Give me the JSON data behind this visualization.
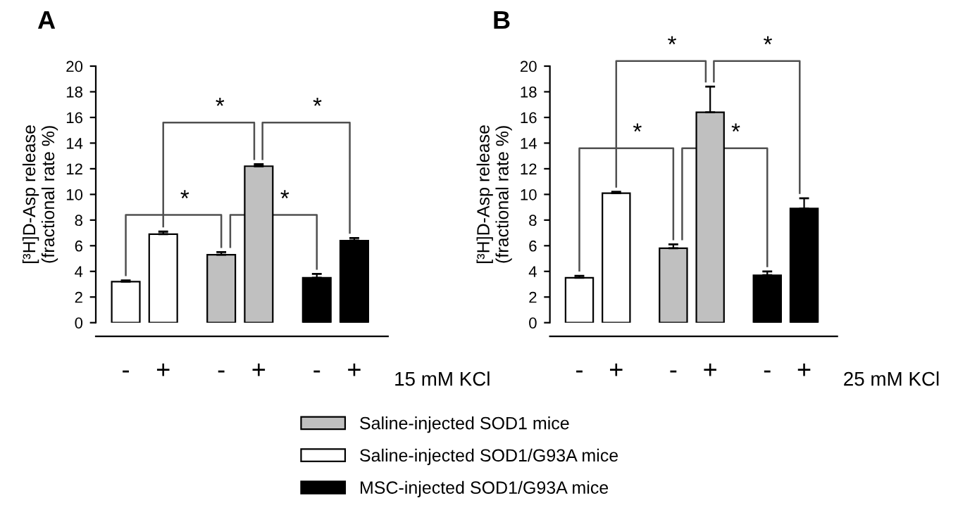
{
  "chart_data": [
    {
      "type": "bar",
      "title": "A",
      "ylabel": "[³H]D-Asp release\n(fractional rate %)",
      "xlabel": "15 mM KCl",
      "categories": [
        "-",
        "+",
        "-",
        "+",
        "-",
        "+"
      ],
      "ylim": [
        0,
        20
      ],
      "yticks": [
        0,
        2,
        4,
        6,
        8,
        10,
        12,
        14,
        16,
        18,
        20
      ],
      "grid": false,
      "legend": "bottom",
      "series": [
        {
          "name": "Saline-injected SOD1 mice",
          "color": "#c0c0c0",
          "values": [
            null,
            null,
            5.3,
            12.2,
            null,
            null
          ],
          "errors": [
            null,
            null,
            0.2,
            0.15,
            null,
            null
          ]
        },
        {
          "name": "Saline-injected SOD1/G93A mice",
          "color": "#ffffff",
          "values": [
            3.2,
            6.9,
            null,
            null,
            null,
            null
          ],
          "errors": [
            0.1,
            0.2,
            null,
            null,
            null,
            null
          ]
        },
        {
          "name": "MSC-injected SOD1/G93A mice",
          "color": "#000000",
          "values": [
            null,
            null,
            null,
            null,
            3.5,
            6.4
          ],
          "errors": [
            null,
            null,
            null,
            null,
            0.3,
            0.2
          ]
        }
      ],
      "annotations": [
        "*",
        "*",
        "*",
        "*"
      ]
    },
    {
      "type": "bar",
      "title": "B",
      "ylabel": "[³H]D-Asp release\n(fractional rate %)",
      "xlabel": "25 mM KCl",
      "categories": [
        "-",
        "+",
        "-",
        "+",
        "-",
        "+"
      ],
      "ylim": [
        0,
        20
      ],
      "yticks": [
        0,
        2,
        4,
        6,
        8,
        10,
        12,
        14,
        16,
        18,
        20
      ],
      "grid": false,
      "series": [
        {
          "color": "#c0c0c0",
          "values": [
            null,
            null,
            5.8,
            16.4,
            null,
            null
          ],
          "errors": [
            null,
            null,
            0.3,
            2.0,
            null,
            null
          ]
        },
        {
          "color": "#ffffff",
          "values": [
            3.5,
            10.1,
            null,
            null,
            null,
            null
          ],
          "errors": [
            0.15,
            0.1,
            null,
            null,
            null,
            null
          ]
        },
        {
          "color": "#000000",
          "values": [
            null,
            null,
            null,
            null,
            3.7,
            8.9
          ],
          "errors": [
            null,
            null,
            null,
            null,
            0.3,
            0.8
          ]
        }
      ],
      "annotations": [
        "*",
        "*",
        "*",
        "*"
      ]
    }
  ]
}
